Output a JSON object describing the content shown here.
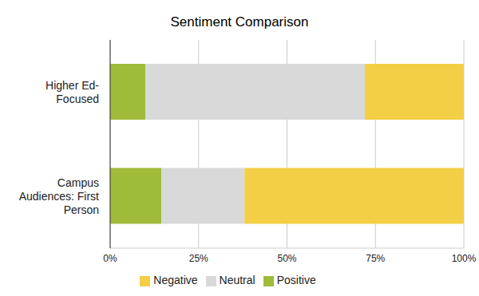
{
  "chart_data": {
    "type": "bar",
    "title": "Sentiment Comparison",
    "orientation": "horizontal",
    "stacked": true,
    "categories": [
      "Higher Ed-Focused",
      "Campus Audiences: First Person"
    ],
    "series": [
      {
        "name": "Positive",
        "color": "#9fbb3a",
        "values": [
          10,
          14.5
        ]
      },
      {
        "name": "Neutral",
        "color": "#d9d9d9",
        "values": [
          62,
          23.5
        ]
      },
      {
        "name": "Negative",
        "color": "#f2cf45",
        "values": [
          28,
          62
        ]
      }
    ],
    "xlim": [
      0,
      100
    ],
    "xticks": [
      {
        "value": 0,
        "label": "0%"
      },
      {
        "value": 25,
        "label": "25%"
      },
      {
        "value": 50,
        "label": "50%"
      },
      {
        "value": 75,
        "label": "75%"
      },
      {
        "value": 100,
        "label": "100%"
      }
    ],
    "grid": true,
    "legend": "bottom"
  }
}
